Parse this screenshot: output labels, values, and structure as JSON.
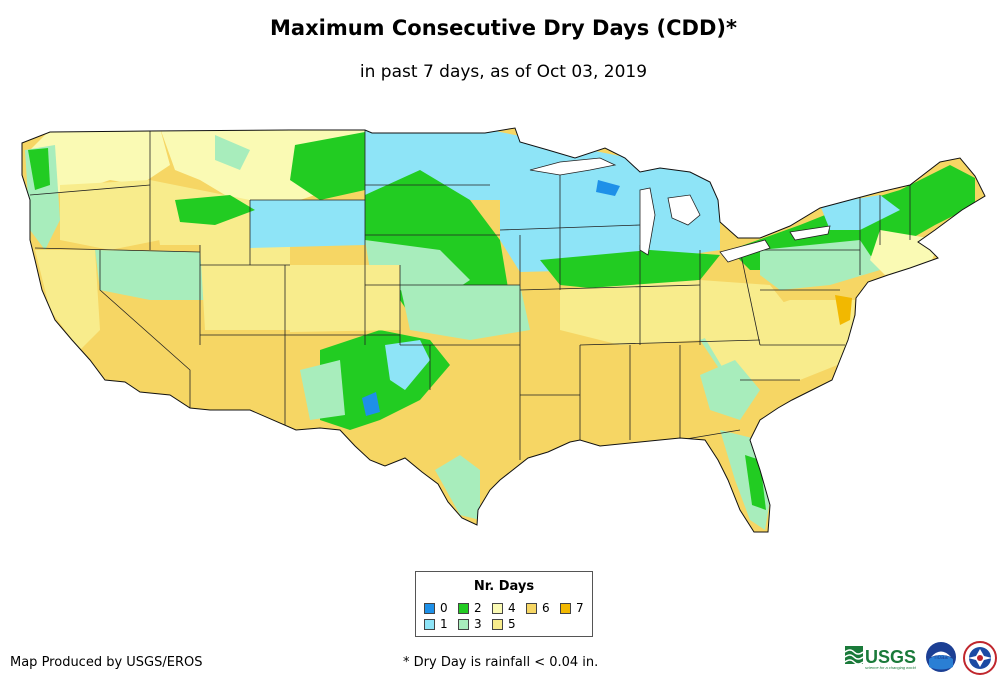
{
  "title": "Maximum Consecutive Dry Days (CDD)*",
  "subtitle": "in past 7 days, as of Oct 03, 2019",
  "legend": {
    "title": "Nr. Days",
    "items": [
      {
        "label": "0",
        "color": "#1e90e8"
      },
      {
        "label": "1",
        "color": "#8ee4f7"
      },
      {
        "label": "2",
        "color": "#22cc22"
      },
      {
        "label": "3",
        "color": "#a8edbc"
      },
      {
        "label": "4",
        "color": "#fafab4"
      },
      {
        "label": "5",
        "color": "#f8ec8c"
      },
      {
        "label": "6",
        "color": "#f6d664"
      },
      {
        "label": "7",
        "color": "#f2b800"
      }
    ]
  },
  "footer": {
    "producer": "Map Produced by USGS/EROS",
    "footnote": "* Dry Day is rainfall < 0.04 in."
  },
  "logos": {
    "usgs": "USGS",
    "usgs_tagline": "science for a changing world",
    "noaa": "noaa"
  }
}
